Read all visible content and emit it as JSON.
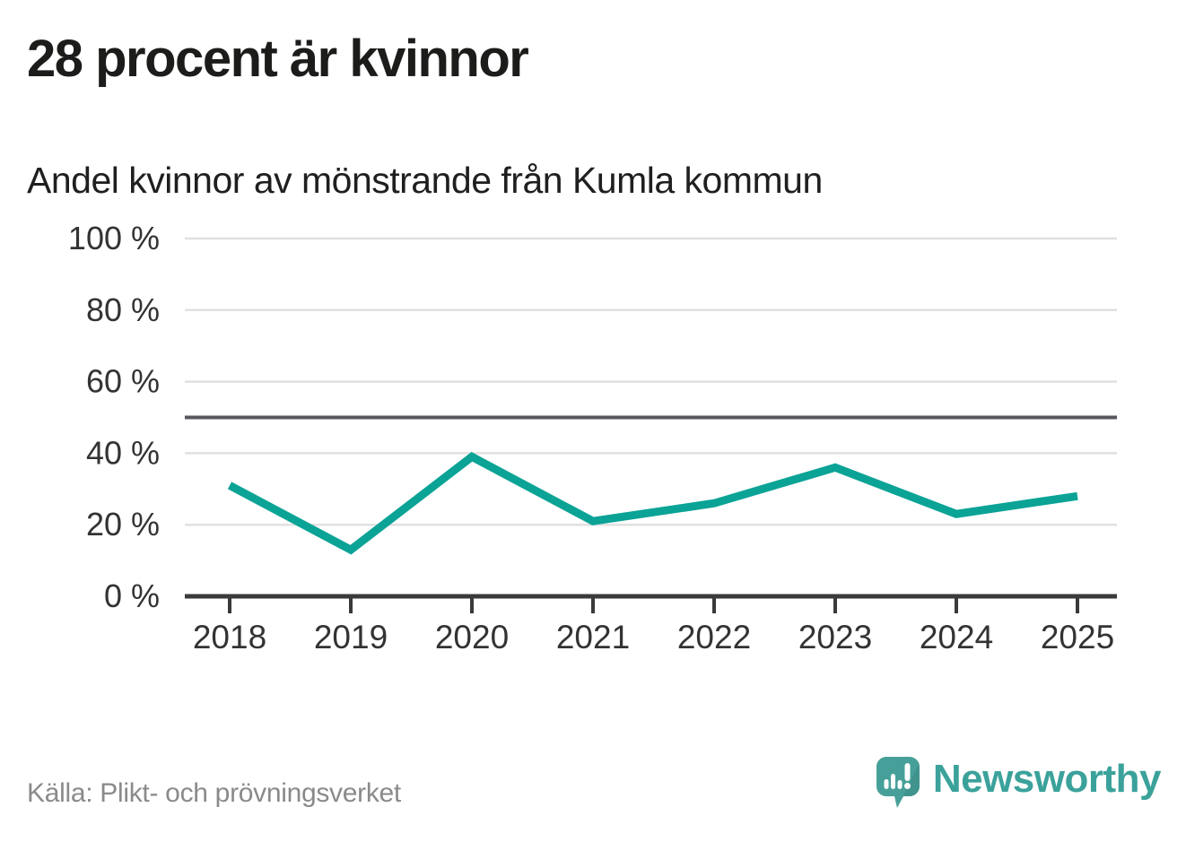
{
  "header": {
    "title": "28 procent är kvinnor",
    "subtitle": "Andel kvinnor av mönstrande från Kumla kommun"
  },
  "chart_data": {
    "type": "line",
    "title": "28 procent är kvinnor",
    "subtitle": "Andel kvinnor av mönstrande från Kumla kommun",
    "categories": [
      "2018",
      "2019",
      "2020",
      "2021",
      "2022",
      "2023",
      "2024",
      "2025"
    ],
    "series": [
      {
        "name": "Andel kvinnor av mönstrande",
        "values": [
          31,
          13,
          39,
          21,
          26,
          36,
          23,
          28
        ]
      }
    ],
    "unit": "%",
    "ylim": [
      0,
      100
    ],
    "yticks": [
      {
        "v": 0,
        "label": "0 %"
      },
      {
        "v": 20,
        "label": "20 %"
      },
      {
        "v": 40,
        "label": "40 %"
      },
      {
        "v": 60,
        "label": "60 %"
      },
      {
        "v": 80,
        "label": "80 %"
      },
      {
        "v": 100,
        "label": "100 %"
      }
    ],
    "reference_line": {
      "value": 50
    },
    "grid": true,
    "legend": "none",
    "colors": {
      "line": "#0aa396",
      "grid": "#e1e1e1",
      "axis": "#3a3a3a",
      "reference": "#56565c",
      "tick_label": "#333333"
    }
  },
  "footer": {
    "source": "Källa: Plikt- och prövningsverket",
    "brand": "Newsworthy",
    "brand_color": "#3ba29b",
    "logo_color": "#46a099"
  }
}
